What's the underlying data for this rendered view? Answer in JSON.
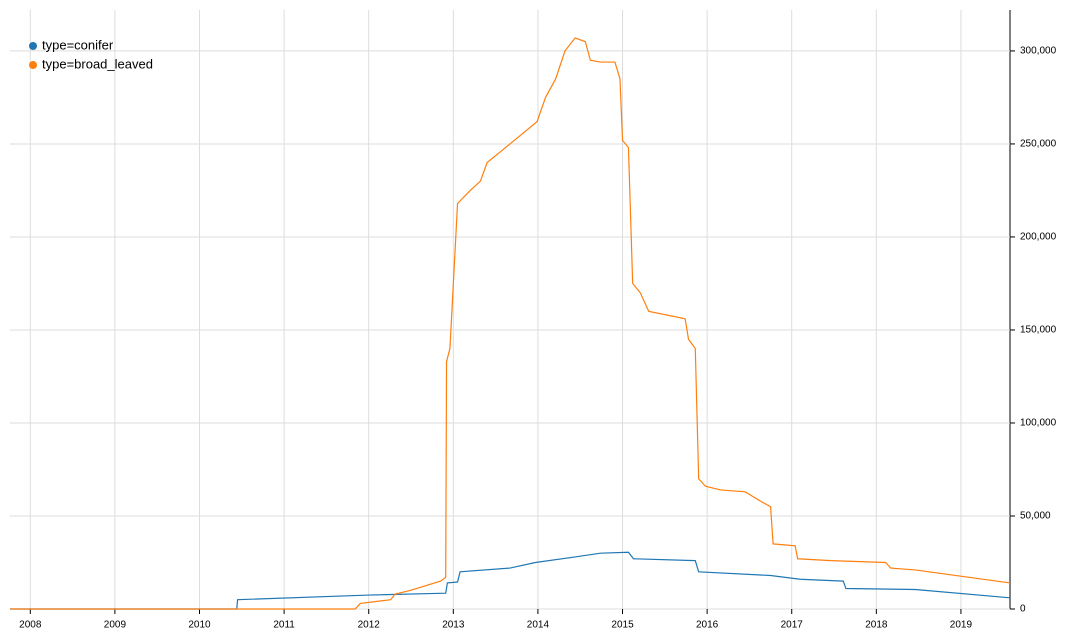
{
  "chart_data": {
    "type": "line",
    "xlim": [
      2007.76,
      2019.58
    ],
    "xticks": [
      2008,
      2009,
      2010,
      2011,
      2012,
      2013,
      2014,
      2015,
      2016,
      2017,
      2018,
      2019
    ],
    "ylim": [
      0,
      322000
    ],
    "yticks": [
      0,
      {
        "value": 50000,
        "label": "50,000"
      },
      {
        "value": 100000,
        "label": "100,000"
      },
      {
        "value": 150000,
        "label": "150,000"
      },
      {
        "value": 200000,
        "label": "200,000"
      },
      {
        "value": 250000,
        "label": "250,000"
      },
      {
        "value": 300000,
        "label": "300,000"
      }
    ],
    "grid": true,
    "legend": "top-left",
    "series": [
      {
        "name": "type=conifer",
        "color": "#1f77b4",
        "x": [
          2007.76,
          2010.44,
          2010.45,
          2012.0,
          2012.91,
          2012.93,
          2013.05,
          2013.08,
          2013.67,
          2013.97,
          2014.44,
          2014.74,
          2015.07,
          2015.13,
          2015.86,
          2015.9,
          2016.75,
          2017.1,
          2017.61,
          2017.64,
          2018.46,
          2019.58
        ],
        "values": [
          0,
          0,
          5000,
          7500,
          8500,
          14000,
          14500,
          20000,
          22000,
          25000,
          28000,
          30000,
          30500,
          27000,
          26000,
          20000,
          18000,
          16000,
          15000,
          11000,
          10500,
          6000
        ]
      },
      {
        "name": "type=broad_leaved",
        "color": "#ff7f0e",
        "x": [
          2007.76,
          2011.84,
          2011.9,
          2012.26,
          2012.31,
          2012.49,
          2012.85,
          2012.91,
          2012.92,
          2012.96,
          2013.05,
          2013.2,
          2013.32,
          2013.4,
          2013.67,
          2013.99,
          2014.09,
          2014.21,
          2014.32,
          2014.44,
          2014.56,
          2014.62,
          2014.74,
          2014.91,
          2014.97,
          2015.0,
          2015.07,
          2015.12,
          2015.21,
          2015.31,
          2015.74,
          2015.78,
          2015.86,
          2015.9,
          2015.98,
          2016.16,
          2016.45,
          2016.63,
          2016.75,
          2016.78,
          2017.04,
          2017.07,
          2017.46,
          2018.11,
          2018.17,
          2018.46,
          2019.58
        ],
        "values": [
          0,
          0,
          3000,
          5000,
          8000,
          10000,
          15000,
          17000,
          133000,
          140000,
          218000,
          225000,
          230000,
          240000,
          250000,
          262000,
          275000,
          285000,
          300000,
          307000,
          305000,
          295000,
          294000,
          294000,
          285000,
          252000,
          248000,
          175000,
          170000,
          160000,
          156000,
          145000,
          140000,
          70000,
          66000,
          64000,
          63000,
          58000,
          55000,
          35000,
          34000,
          27000,
          26000,
          25000,
          22000,
          21000,
          14000
        ]
      }
    ]
  }
}
